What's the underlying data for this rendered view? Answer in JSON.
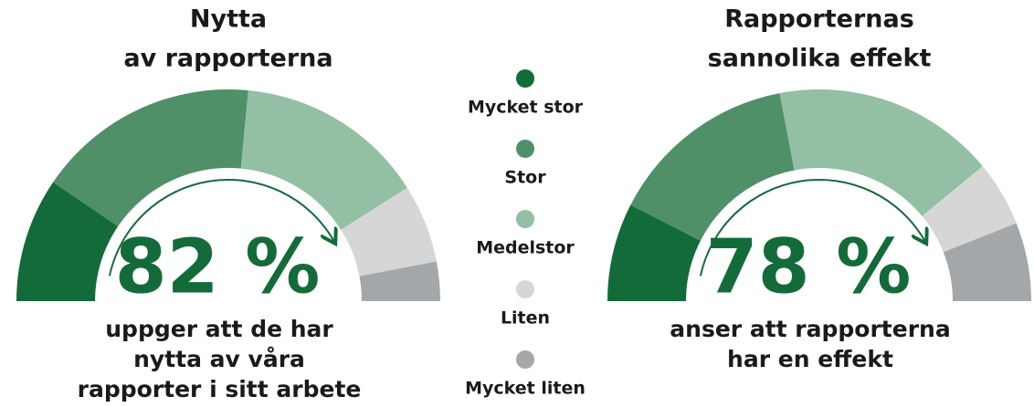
{
  "chart_data": [
    {
      "type": "gauge",
      "title": [
        "Nytta",
        "av rapporterna"
      ],
      "center_label": "82 %",
      "subtitle": [
        "uppger att de har",
        "nytta av våra",
        "rapporter i sitt arbete"
      ],
      "values": [
        19,
        34,
        29,
        12,
        6
      ]
    },
    {
      "type": "gauge",
      "title": [
        "Rapporternas",
        "sannolika effekt"
      ],
      "center_label": "78 %",
      "subtitle": [
        "anser att rapporterna",
        "har en effekt"
      ],
      "values": [
        15,
        29,
        34,
        10,
        12
      ]
    }
  ],
  "legend": {
    "categories": [
      "Mycket stor",
      "Stor",
      "Medelstor",
      "Liten",
      "Mycket liten"
    ],
    "colors": [
      "#146b3a",
      "#4f9068",
      "#93bfa4",
      "#d6d6d6",
      "#a4a7aa"
    ]
  }
}
